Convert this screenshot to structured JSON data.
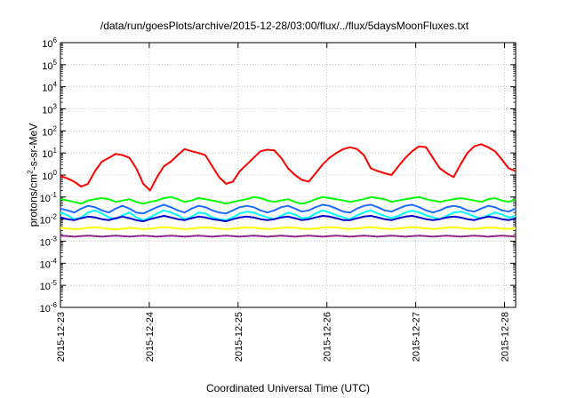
{
  "chart_data": {
    "type": "line",
    "title": "/data/run/goesPlots/archive/2015-12-28/03:00/flux/../flux/5daysMoonFluxes.txt",
    "xlabel": "Coordinated Universal Time (UTC)",
    "ylabel": {
      "prefix": "protons/cm",
      "sup": "2",
      "suffix": "-s-sr-MeV"
    },
    "yscale": "log",
    "ylim": [
      1e-06,
      1000000.0
    ],
    "yticks": [
      {
        "base": "10",
        "exp": "-6"
      },
      {
        "base": "10",
        "exp": "-5"
      },
      {
        "base": "10",
        "exp": "-4"
      },
      {
        "base": "10",
        "exp": "-3"
      },
      {
        "base": "10",
        "exp": "-2"
      },
      {
        "base": "10",
        "exp": "-1"
      },
      {
        "base": "10",
        "exp": "0"
      },
      {
        "base": "10",
        "exp": "1"
      },
      {
        "base": "10",
        "exp": "2"
      },
      {
        "base": "10",
        "exp": "3"
      },
      {
        "base": "10",
        "exp": "4"
      },
      {
        "base": "10",
        "exp": "5"
      },
      {
        "base": "10",
        "exp": "6"
      }
    ],
    "xlim": [
      "2015-12-23",
      "2015-12-28 03:00"
    ],
    "xticks": [
      "2015-12-23",
      "2015-12-24",
      "2015-12-25",
      "2015-12-26",
      "2015-12-27",
      "2015-12-28"
    ],
    "grid": true,
    "series": [
      {
        "color": "#ff0000",
        "trend": "high",
        "values": [
          0.9,
          0.7,
          0.5,
          0.3,
          0.4,
          1.5,
          4.0,
          6.0,
          9.0,
          8.0,
          6.0,
          2.0,
          0.4,
          0.2,
          0.8,
          2.5,
          4.0,
          8.0,
          15.0,
          12.0,
          10.0,
          8.0,
          2.5,
          0.8,
          0.4,
          0.5,
          1.5,
          3.0,
          6.0,
          12.0,
          14.0,
          13.0,
          6.0,
          2.0,
          1.0,
          0.6,
          0.5,
          1.2,
          3.0,
          6.0,
          10.0,
          15.0,
          18.0,
          15.0,
          8.0,
          2.0,
          1.5,
          1.2,
          1.0,
          2.5,
          6.0,
          12.0,
          20.0,
          18.0,
          6.0,
          2.0,
          1.2,
          0.8,
          3.0,
          10.0,
          20.0,
          25.0,
          18.0,
          12.0,
          5.0,
          2.0,
          1.5
        ]
      },
      {
        "color": "#00ff00",
        "trend": "p1",
        "values": [
          0.08,
          0.07,
          0.06,
          0.05,
          0.07,
          0.08,
          0.09,
          0.08,
          0.06,
          0.07,
          0.08,
          0.06,
          0.05,
          0.06,
          0.07,
          0.09,
          0.1,
          0.08,
          0.06,
          0.07,
          0.09,
          0.08,
          0.07,
          0.06,
          0.05,
          0.06,
          0.07,
          0.08,
          0.1,
          0.09,
          0.07,
          0.06,
          0.07,
          0.08,
          0.06,
          0.05,
          0.06,
          0.08,
          0.1,
          0.09,
          0.08,
          0.07,
          0.06,
          0.07,
          0.08,
          0.1,
          0.09,
          0.08,
          0.06,
          0.07,
          0.08,
          0.09,
          0.1,
          0.08,
          0.07,
          0.06,
          0.07,
          0.08,
          0.09,
          0.08,
          0.07,
          0.06,
          0.08,
          0.09,
          0.07,
          0.06,
          0.08
        ]
      },
      {
        "color": "#00ffff",
        "trend": "p2",
        "values": [
          0.02,
          0.015,
          0.01,
          0.012,
          0.02,
          0.025,
          0.018,
          0.012,
          0.01,
          0.015,
          0.02,
          0.012,
          0.009,
          0.012,
          0.018,
          0.025,
          0.02,
          0.015,
          0.01,
          0.013,
          0.02,
          0.018,
          0.012,
          0.01,
          0.009,
          0.012,
          0.018,
          0.022,
          0.02,
          0.015,
          0.012,
          0.01,
          0.014,
          0.02,
          0.016,
          0.011,
          0.012,
          0.018,
          0.025,
          0.02,
          0.015,
          0.012,
          0.01,
          0.015,
          0.02,
          0.025,
          0.018,
          0.014,
          0.011,
          0.014,
          0.02,
          0.024,
          0.02,
          0.015,
          0.012,
          0.01,
          0.014,
          0.02,
          0.022,
          0.018,
          0.013,
          0.011,
          0.015,
          0.02,
          0.016,
          0.012,
          0.014
        ]
      },
      {
        "color": "#1f6bff",
        "trend": "p3",
        "values": [
          0.03,
          0.025,
          0.02,
          0.03,
          0.04,
          0.035,
          0.025,
          0.02,
          0.03,
          0.04,
          0.03,
          0.02,
          0.018,
          0.025,
          0.035,
          0.045,
          0.035,
          0.025,
          0.02,
          0.03,
          0.04,
          0.035,
          0.025,
          0.02,
          0.018,
          0.025,
          0.035,
          0.04,
          0.035,
          0.025,
          0.02,
          0.025,
          0.035,
          0.04,
          0.03,
          0.022,
          0.025,
          0.035,
          0.045,
          0.04,
          0.03,
          0.022,
          0.02,
          0.03,
          0.04,
          0.045,
          0.035,
          0.025,
          0.022,
          0.03,
          0.04,
          0.045,
          0.035,
          0.025,
          0.02,
          0.025,
          0.035,
          0.04,
          0.035,
          0.025,
          0.022,
          0.03,
          0.04,
          0.035,
          0.025,
          0.022,
          0.03
        ]
      },
      {
        "color": "#0000cc",
        "trend": "p4",
        "values": [
          0.012,
          0.01,
          0.009,
          0.011,
          0.013,
          0.012,
          0.01,
          0.009,
          0.011,
          0.013,
          0.011,
          0.009,
          0.008,
          0.01,
          0.012,
          0.014,
          0.012,
          0.01,
          0.009,
          0.011,
          0.013,
          0.012,
          0.01,
          0.009,
          0.008,
          0.01,
          0.012,
          0.013,
          0.012,
          0.01,
          0.009,
          0.01,
          0.012,
          0.013,
          0.011,
          0.009,
          0.01,
          0.012,
          0.014,
          0.013,
          0.011,
          0.009,
          0.009,
          0.011,
          0.013,
          0.014,
          0.012,
          0.01,
          0.009,
          0.011,
          0.013,
          0.014,
          0.012,
          0.01,
          0.009,
          0.01,
          0.012,
          0.013,
          0.012,
          0.01,
          0.009,
          0.011,
          0.013,
          0.012,
          0.01,
          0.009,
          0.011
        ]
      },
      {
        "color": "#ffff00",
        "trend": "p5",
        "values": [
          0.004,
          0.0038,
          0.0035,
          0.0037,
          0.004,
          0.0042,
          0.004,
          0.0036,
          0.0034,
          0.0037,
          0.004,
          0.0038,
          0.0035,
          0.0037,
          0.004,
          0.0043,
          0.0041,
          0.0038,
          0.0035,
          0.0037,
          0.004,
          0.0042,
          0.004,
          0.0037,
          0.0035,
          0.0037,
          0.004,
          0.0042,
          0.0041,
          0.0038,
          0.0036,
          0.0037,
          0.004,
          0.0042,
          0.004,
          0.0037,
          0.0036,
          0.0038,
          0.0041,
          0.0043,
          0.0041,
          0.0038,
          0.0036,
          0.0038,
          0.0041,
          0.0043,
          0.004,
          0.0037,
          0.0036,
          0.0038,
          0.0041,
          0.0043,
          0.0041,
          0.0038,
          0.0036,
          0.0038,
          0.0041,
          0.0042,
          0.004,
          0.0037,
          0.0036,
          0.0039,
          0.0041,
          0.004,
          0.0037,
          0.0036,
          0.0039
        ]
      },
      {
        "color": "#8b2a8b",
        "trend": "p6",
        "values": [
          0.0018,
          0.0017,
          0.0016,
          0.0017,
          0.0018,
          0.0017,
          0.0016,
          0.0017,
          0.0018,
          0.0017,
          0.0016,
          0.0017,
          0.0018,
          0.0017,
          0.0016,
          0.0017,
          0.0018,
          0.0017,
          0.0016,
          0.0017,
          0.0018,
          0.0017,
          0.0016,
          0.0017,
          0.0018,
          0.0017,
          0.0016,
          0.0017,
          0.0018,
          0.0017,
          0.0016,
          0.0017,
          0.0018,
          0.0017,
          0.0016,
          0.0017,
          0.0018,
          0.0017,
          0.0016,
          0.0017,
          0.0018,
          0.0017,
          0.0016,
          0.0017,
          0.0018,
          0.0017,
          0.0016,
          0.0017,
          0.0018,
          0.0017,
          0.0016,
          0.0017,
          0.0018,
          0.0017,
          0.0016,
          0.0017,
          0.0018,
          0.0017,
          0.0016,
          0.0017,
          0.0018,
          0.0017,
          0.0016,
          0.0017,
          0.0018,
          0.0017,
          0.0016
        ]
      }
    ]
  }
}
